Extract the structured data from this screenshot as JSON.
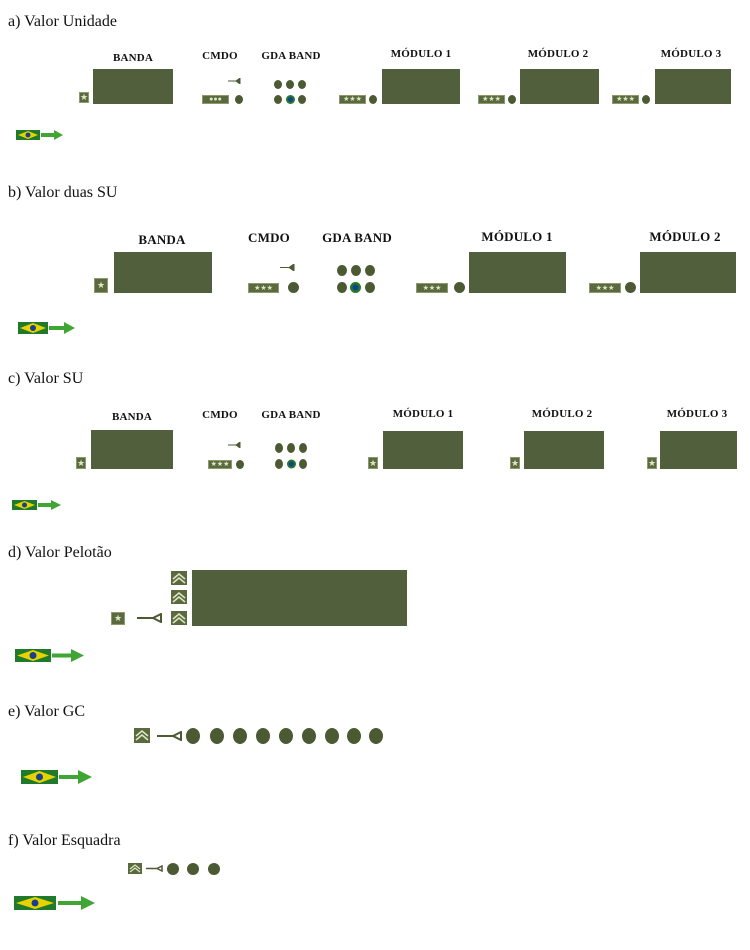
{
  "sections": [
    {
      "id": "a",
      "title": "a) Valor Unidade",
      "labels": [
        "BANDA",
        "CMDO",
        "GDA BAND",
        "MÓDULO 1",
        "MÓDULO 2",
        "MÓDULO 3"
      ]
    },
    {
      "id": "b",
      "title": "b) Valor duas SU",
      "labels": [
        "BANDA",
        "CMDO",
        "GDA BAND",
        "MÓDULO 1",
        "MÓDULO 2"
      ]
    },
    {
      "id": "c",
      "title": "c) Valor SU",
      "labels": [
        "BANDA",
        "CMDO",
        "GDA BAND",
        "MÓDULO 1",
        "MÓDULO 2",
        "MÓDULO 3"
      ]
    },
    {
      "id": "d",
      "title": "d) Valor Pelotão"
    },
    {
      "id": "e",
      "title": "e) Valor GC"
    },
    {
      "id": "f",
      "title": "f) Valor Esquadra"
    }
  ],
  "icons": {
    "formation_block": "formation-block",
    "flag": "brazil-flag-icon",
    "arrow": "direction-arrow-icon",
    "rank_star": "star-insignia-icon",
    "rank_stars": "three-star-insignia-icon",
    "chevron": "sergeant-chevron-icon",
    "bugle": "bugle-icon",
    "person": "soldier-dot-icon"
  },
  "colors": {
    "block": "#525f3c",
    "dot": "#4b5a33",
    "flag_green": "#1f7a2c",
    "flag_yellow": "#e8d200",
    "flag_blue": "#1b3f8f",
    "arrow": "#3fa534"
  }
}
